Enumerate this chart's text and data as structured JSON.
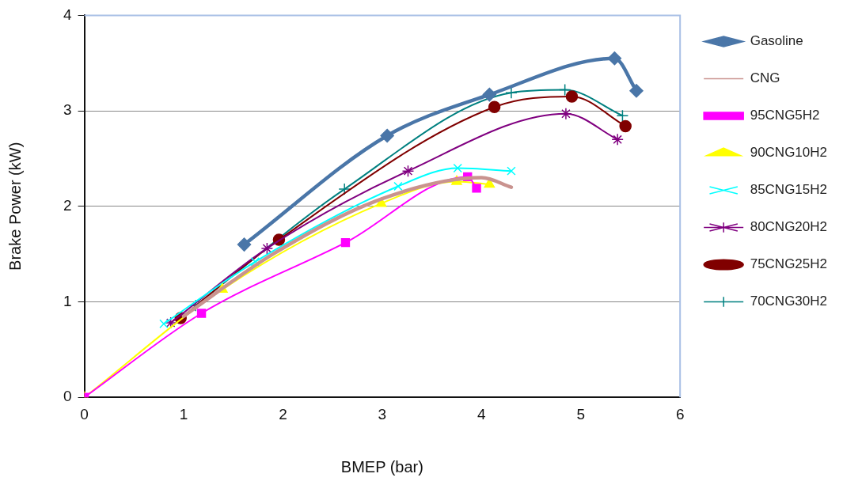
{
  "chart_data": {
    "type": "line",
    "xlabel": "BMEP (bar)",
    "ylabel": "Brake Power (kW)",
    "xlim": [
      0,
      6
    ],
    "xticks": [
      0,
      1,
      2,
      3,
      4,
      5,
      6
    ],
    "ylim": [
      0,
      4
    ],
    "yticks": [
      0,
      1,
      2,
      3,
      4
    ],
    "grid": "y",
    "legend": "right",
    "line_style": "solid",
    "series": [
      {
        "name": "Gasoline",
        "color": "#4a76a8",
        "marker": "diamond",
        "x": [
          1.61,
          3.05,
          4.08,
          5.34,
          5.56
        ],
        "values": [
          1.6,
          2.74,
          3.17,
          3.55,
          3.21
        ]
      },
      {
        "name": "CNG",
        "color": "#c9938f",
        "marker": "none",
        "x": [
          1.0,
          1.9,
          3.0,
          4.0,
          4.3
        ],
        "values": [
          0.85,
          1.5,
          2.08,
          2.3,
          2.2
        ]
      },
      {
        "name": "95CNG5H2",
        "color": "#ff00ff",
        "marker": "square",
        "x": [
          0,
          1.18,
          2.63,
          3.86,
          3.95
        ],
        "values": [
          0,
          0.88,
          1.62,
          2.31,
          2.19
        ]
      },
      {
        "name": "90CNG10H2",
        "color": "#ffff00",
        "marker": "triangle",
        "x": [
          0,
          1.39,
          2.99,
          3.75,
          4.08
        ],
        "values": [
          0,
          1.13,
          2.03,
          2.26,
          2.23
        ]
      },
      {
        "name": "85CNG15H2",
        "color": "#00ffff",
        "marker": "x",
        "x": [
          0.8,
          1.72,
          3.16,
          3.76,
          4.3
        ],
        "values": [
          0.77,
          1.42,
          2.21,
          2.4,
          2.37
        ]
      },
      {
        "name": "80CNG20H2",
        "color": "#800080",
        "marker": "cross",
        "x": [
          0.87,
          1.84,
          3.26,
          4.85,
          5.37
        ],
        "values": [
          0.78,
          1.56,
          2.37,
          2.97,
          2.7
        ]
      },
      {
        "name": "75CNG25H2",
        "color": "#800000",
        "marker": "circle",
        "x": [
          0.97,
          1.96,
          4.13,
          4.91,
          5.45
        ],
        "values": [
          0.83,
          1.65,
          3.04,
          3.15,
          2.84
        ]
      },
      {
        "name": "70CNG30H2",
        "color": "#008080",
        "marker": "plus",
        "x": [
          1.12,
          2.62,
          4.3,
          4.84,
          5.42
        ],
        "values": [
          0.96,
          2.18,
          3.19,
          3.22,
          2.95
        ]
      }
    ]
  }
}
